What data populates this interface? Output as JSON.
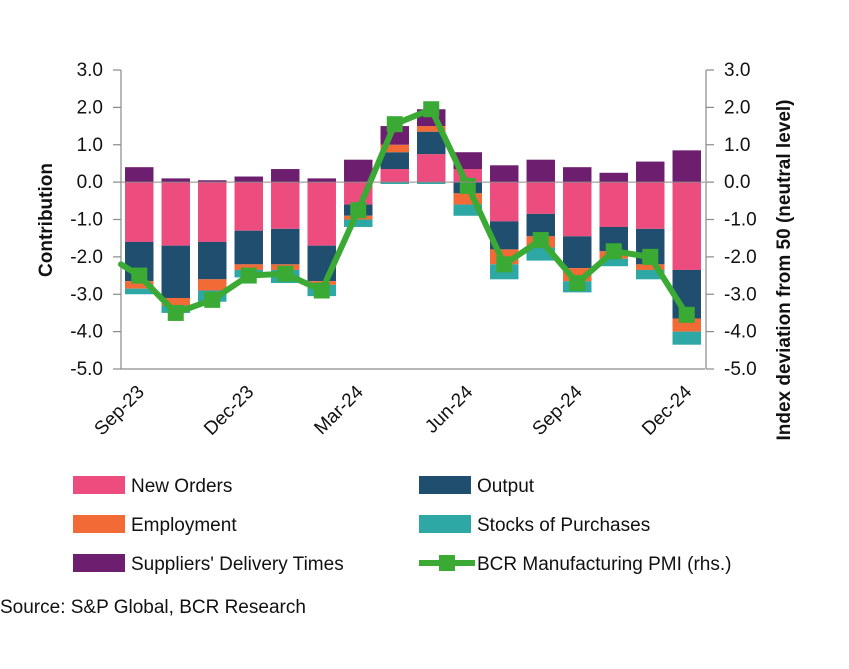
{
  "chart_data": {
    "type": "bar",
    "stacked": true,
    "categories": [
      "Sep-23",
      "Oct-23",
      "Nov-23",
      "Dec-23",
      "Jan-24",
      "Feb-24",
      "Mar-24",
      "Apr-24",
      "May-24",
      "Jun-24",
      "Jul-24",
      "Aug-24",
      "Sep-24",
      "Oct-24",
      "Nov-24",
      "Dec-24"
    ],
    "x_tick_labels": [
      "Sep-23",
      "Dec-23",
      "Mar-24",
      "Jun-24",
      "Sep-24",
      "Dec-24"
    ],
    "ylabel_left": "Contribution",
    "ylabel_right": "Index deviation from 50 (neutral level)",
    "ylim": [
      -5,
      3
    ],
    "yticks": [
      3,
      2,
      1,
      0,
      -1,
      -2,
      -3,
      -4,
      -5
    ],
    "ytick_labels": [
      "3.0",
      "2.0",
      "1.0",
      "0.0",
      "-1.0",
      "-2.0",
      "-3.0",
      "-4.0",
      "-5.0"
    ],
    "grid": false,
    "legend_placement": "bottom",
    "series": [
      {
        "name": "New Orders",
        "color": "#EC4D7E",
        "kind": "bar",
        "values": [
          -1.6,
          -1.7,
          -1.6,
          -1.3,
          -1.25,
          -1.7,
          -0.6,
          0.35,
          0.75,
          0.35,
          -1.05,
          -0.85,
          -1.45,
          -1.2,
          -1.25,
          -2.35
        ]
      },
      {
        "name": "Output",
        "color": "#1F4E6E",
        "kind": "bar",
        "values": [
          -1.05,
          -1.4,
          -1.0,
          -0.9,
          -0.95,
          -0.95,
          -0.3,
          0.45,
          0.6,
          -0.3,
          -0.75,
          -0.6,
          -0.85,
          -0.65,
          -0.95,
          -1.3
        ]
      },
      {
        "name": "Employment",
        "color": "#F26A36",
        "kind": "bar",
        "values": [
          -0.2,
          -0.2,
          -0.3,
          -0.15,
          -0.15,
          -0.1,
          -0.1,
          0.2,
          0.15,
          -0.3,
          -0.4,
          -0.3,
          -0.35,
          -0.2,
          -0.15,
          -0.35
        ]
      },
      {
        "name": "Stocks of Purchases",
        "color": "#2EA8A5",
        "kind": "bar",
        "values": [
          -0.15,
          -0.2,
          -0.3,
          -0.2,
          -0.35,
          -0.3,
          -0.2,
          -0.05,
          -0.05,
          -0.3,
          -0.4,
          -0.35,
          -0.3,
          -0.2,
          -0.25,
          -0.35
        ]
      },
      {
        "name": "Suppliers' Delivery Times",
        "color": "#6E1E6E",
        "kind": "bar",
        "values": [
          0.4,
          0.1,
          0.05,
          0.15,
          0.35,
          0.1,
          0.6,
          0.5,
          0.45,
          0.45,
          0.45,
          0.6,
          0.4,
          0.25,
          0.55,
          0.85
        ]
      },
      {
        "name": "BCR Manufacturing PMI (rhs.)",
        "color": "#3AAA35",
        "kind": "line",
        "values": [
          -2.5,
          -3.5,
          -3.15,
          -2.5,
          -2.45,
          -2.9,
          -0.75,
          1.55,
          1.95,
          -0.1,
          -2.2,
          -1.55,
          -2.7,
          -1.85,
          -2.0,
          -3.55
        ]
      }
    ]
  },
  "legend": {
    "items": [
      {
        "label": "New Orders",
        "color": "#EC4D7E",
        "marker": "box"
      },
      {
        "label": "Output",
        "color": "#1F4E6E",
        "marker": "box"
      },
      {
        "label": "Employment",
        "color": "#F26A36",
        "marker": "box"
      },
      {
        "label": "Stocks of Purchases",
        "color": "#2EA8A5",
        "marker": "box"
      },
      {
        "label": "Suppliers' Delivery Times",
        "color": "#6E1E6E",
        "marker": "box"
      },
      {
        "label": "BCR Manufacturing PMI (rhs.)",
        "color": "#3AAA35",
        "marker": "line"
      }
    ]
  },
  "source": {
    "text": "Source: S&P Global, BCR Research"
  }
}
